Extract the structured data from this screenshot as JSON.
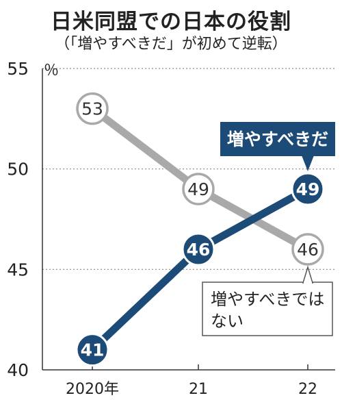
{
  "chart_data": {
    "type": "line",
    "title": "日米同盟での日本の役割",
    "subtitle": "（「増やすべきだ」が初めて逆転）",
    "unit": "％",
    "categories": [
      "2020年",
      "21",
      "22"
    ],
    "ylim": [
      40,
      55
    ],
    "yticks": [
      40,
      45,
      50,
      55
    ],
    "grid": true,
    "series": [
      {
        "name": "増やすべきではない",
        "label_lines": [
          "増やすべきでは",
          "ない"
        ],
        "values": [
          53,
          49,
          46
        ],
        "color": "#a9a9a9",
        "style": "outlined"
      },
      {
        "name": "増やすべきだ",
        "label_lines": [
          "増やすべきだ"
        ],
        "values": [
          41,
          46,
          49
        ],
        "color": "#1c4b78",
        "style": "filled"
      }
    ]
  }
}
